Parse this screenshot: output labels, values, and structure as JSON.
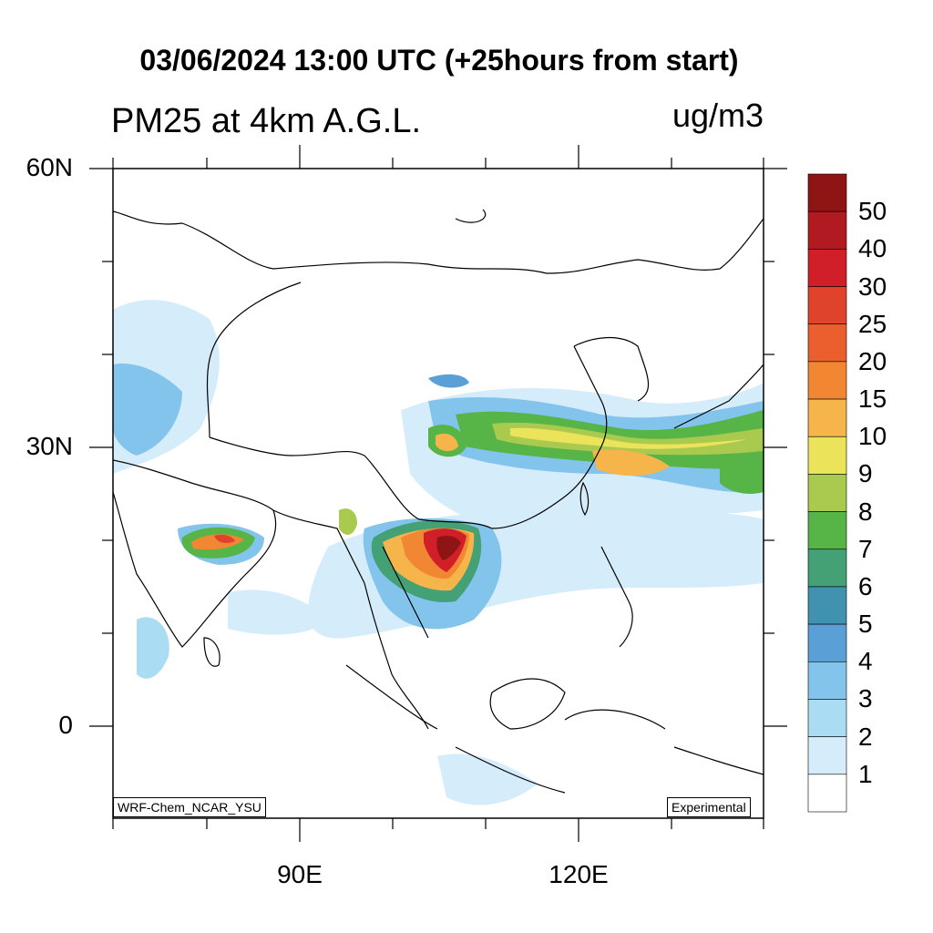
{
  "header": {
    "title": "03/06/2024 13:00 UTC (+25hours from start)",
    "subtitle": "PM25 at 4km A.G.L.",
    "units": "ug/m3"
  },
  "map": {
    "lat_labels": [
      "60N",
      "30N",
      "0"
    ],
    "lon_labels": [
      "90E",
      "120E"
    ],
    "credit_left": "WRF-Chem_NCAR_YSU",
    "credit_right": "Experimental"
  },
  "legend": {
    "labels": [
      "50",
      "40",
      "30",
      "25",
      "20",
      "15",
      "10",
      "9",
      "8",
      "7",
      "6",
      "5",
      "4",
      "3",
      "2",
      "1"
    ],
    "colors": [
      "#8f1414",
      "#b01a20",
      "#d11f2a",
      "#e0432c",
      "#ea5f2d",
      "#f28733",
      "#f5b54b",
      "#ebe35a",
      "#a9ca4f",
      "#57b447",
      "#44a075",
      "#4191b0",
      "#5aa0d6",
      "#83c4ec",
      "#aadcf3",
      "#d5ecfa",
      "#ffffff"
    ]
  }
}
